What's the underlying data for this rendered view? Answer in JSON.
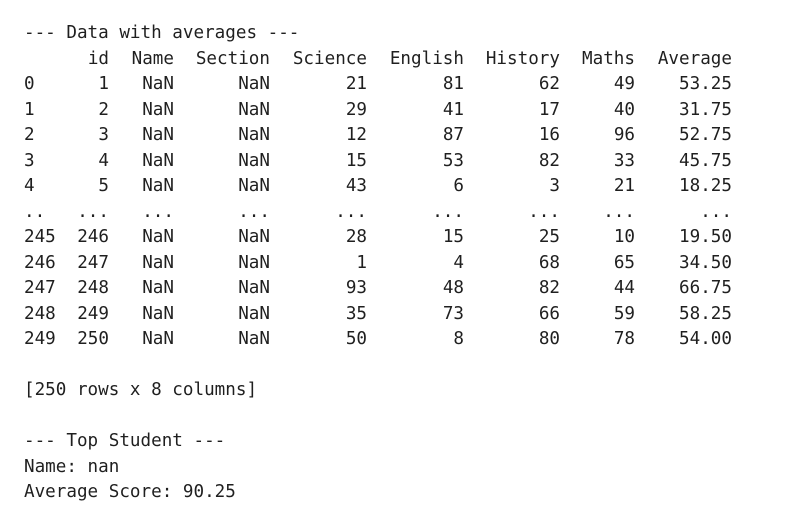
{
  "console": {
    "header_averages": "--- Data with averages ---",
    "columns": [
      "",
      "id",
      "Name",
      "Section",
      "Science",
      "English",
      "History",
      "Maths",
      "Average"
    ],
    "rows": [
      [
        "0",
        "1",
        "NaN",
        "NaN",
        "21",
        "81",
        "62",
        "49",
        "53.25"
      ],
      [
        "1",
        "2",
        "NaN",
        "NaN",
        "29",
        "41",
        "17",
        "40",
        "31.75"
      ],
      [
        "2",
        "3",
        "NaN",
        "NaN",
        "12",
        "87",
        "16",
        "96",
        "52.75"
      ],
      [
        "3",
        "4",
        "NaN",
        "NaN",
        "15",
        "53",
        "82",
        "33",
        "45.75"
      ],
      [
        "4",
        "5",
        "NaN",
        "NaN",
        "43",
        "6",
        "3",
        "21",
        "18.25"
      ],
      [
        "..",
        "...",
        "...",
        "...",
        "...",
        "...",
        "...",
        "...",
        "..."
      ],
      [
        "245",
        "246",
        "NaN",
        "NaN",
        "28",
        "15",
        "25",
        "10",
        "19.50"
      ],
      [
        "246",
        "247",
        "NaN",
        "NaN",
        "1",
        "4",
        "68",
        "65",
        "34.50"
      ],
      [
        "247",
        "248",
        "NaN",
        "NaN",
        "93",
        "48",
        "82",
        "44",
        "66.75"
      ],
      [
        "248",
        "249",
        "NaN",
        "NaN",
        "35",
        "73",
        "66",
        "59",
        "58.25"
      ],
      [
        "249",
        "250",
        "NaN",
        "NaN",
        "50",
        "8",
        "80",
        "78",
        "54.00"
      ]
    ],
    "shape_summary": "[250 rows x 8 columns]",
    "header_top_student": "--- Top Student ---",
    "top_name": "Name: nan",
    "top_average": "Average Score: 90.25"
  }
}
